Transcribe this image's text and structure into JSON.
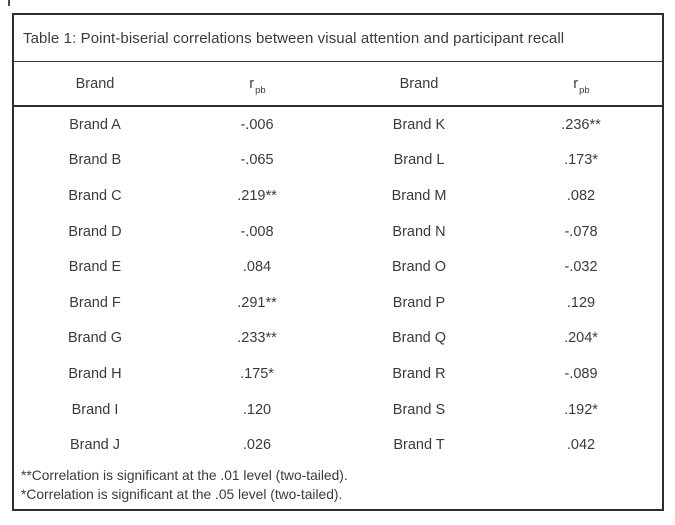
{
  "title": "Table 1: Point-biserial correlations between visual attention and participant recall",
  "header": {
    "brand_1": "Brand",
    "r_base_1": "r",
    "r_sub_1": "pb",
    "brand_2": "Brand",
    "r_base_2": "r",
    "r_sub_2": "pb"
  },
  "rows": [
    {
      "brand_left": "Brand A",
      "r_left": "-.006",
      "brand_right": "Brand K",
      "r_right": ".236**"
    },
    {
      "brand_left": "Brand B",
      "r_left": "-.065",
      "brand_right": "Brand L",
      "r_right": ".173*"
    },
    {
      "brand_left": "Brand C",
      "r_left": ".219**",
      "brand_right": "Brand M",
      "r_right": ".082"
    },
    {
      "brand_left": "Brand D",
      "r_left": "-.008",
      "brand_right": "Brand N",
      "r_right": "-.078"
    },
    {
      "brand_left": "Brand E",
      "r_left": ".084",
      "brand_right": "Brand O",
      "r_right": "-.032"
    },
    {
      "brand_left": "Brand F",
      "r_left": ".291**",
      "brand_right": "Brand P",
      "r_right": ".129"
    },
    {
      "brand_left": "Brand G",
      "r_left": ".233**",
      "brand_right": "Brand Q",
      "r_right": ".204*"
    },
    {
      "brand_left": "Brand H",
      "r_left": ".175*",
      "brand_right": "Brand R",
      "r_right": "-.089"
    },
    {
      "brand_left": "Brand I",
      "r_left": ".120",
      "brand_right": "Brand S",
      "r_right": ".192*"
    },
    {
      "brand_left": "Brand J",
      "r_left": ".026",
      "brand_right": "Brand T",
      "r_right": ".042"
    }
  ],
  "footnotes": [
    "**Correlation is significant at the .01 level (two-tailed).",
    "*Correlation is significant at the .05 level (two-tailed)."
  ],
  "colors": {
    "text": "#3b3b3b",
    "border": "#2e2e2e",
    "background": "#ffffff"
  }
}
